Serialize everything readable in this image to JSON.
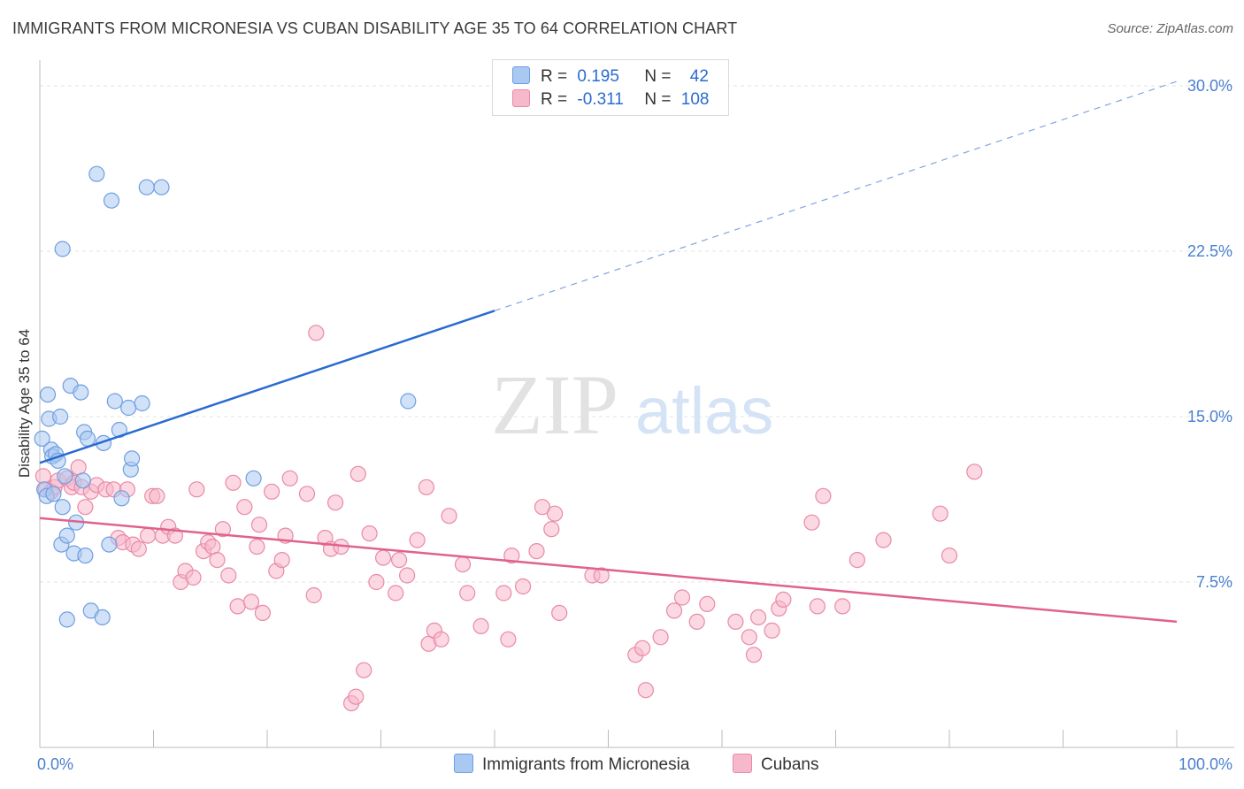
{
  "title": "IMMIGRANTS FROM MICRONESIA VS CUBAN DISABILITY AGE 35 TO 64 CORRELATION CHART",
  "source": "Source: ZipAtlas.com",
  "watermark": {
    "zip": "ZIP",
    "atlas": "atlas"
  },
  "legend": {
    "rows": [
      {
        "r_label": "R =",
        "r_value": "0.195",
        "n_label": "N =",
        "n_value": "42",
        "color": "#a9c8f2",
        "stroke": "#6f9fe0"
      },
      {
        "r_label": "R =",
        "r_value": "-0.311",
        "n_label": "N =",
        "n_value": "108",
        "color": "#f7b8cb",
        "stroke": "#e88aa8"
      }
    ]
  },
  "bottom_legend": [
    {
      "label": "Immigrants from Micronesia",
      "color": "#a9c8f2",
      "stroke": "#6f9fe0"
    },
    {
      "label": "Cubans",
      "color": "#f7b8cb",
      "stroke": "#e88aa8"
    }
  ],
  "chart_data": {
    "type": "scatter",
    "ylabel": "Disability Age 35 to 64",
    "xlim": [
      0,
      100
    ],
    "ylim": [
      0,
      30
    ],
    "x_ticks": [
      {
        "value": 0,
        "label": "0.0%"
      },
      {
        "value": 100,
        "label": "100.0%"
      }
    ],
    "y_ticks": [
      {
        "value": 7.5,
        "label": "7.5%"
      },
      {
        "value": 15,
        "label": "15.0%"
      },
      {
        "value": 22.5,
        "label": "22.5%"
      },
      {
        "value": 30,
        "label": "30.0%"
      }
    ],
    "grid": true,
    "series": [
      {
        "name": "Immigrants from Micronesia",
        "color": "#6f9fe0",
        "fill": "#a9c8f2",
        "trend": {
          "x0": 0,
          "y0": 12.9,
          "x1": 40,
          "y1": 19.8,
          "dash_to_x": 100,
          "dash_to_y": 30.2,
          "color": "#2a6bd0"
        },
        "points": [
          [
            0.2,
            14.0
          ],
          [
            0.4,
            11.7
          ],
          [
            0.6,
            11.4
          ],
          [
            0.7,
            16.0
          ],
          [
            0.8,
            14.9
          ],
          [
            1.0,
            13.5
          ],
          [
            1.1,
            13.2
          ],
          [
            1.2,
            11.5
          ],
          [
            1.4,
            13.3
          ],
          [
            1.6,
            13.0
          ],
          [
            1.8,
            15.0
          ],
          [
            1.9,
            9.2
          ],
          [
            2.0,
            10.9
          ],
          [
            2.0,
            22.6
          ],
          [
            2.2,
            12.3
          ],
          [
            2.4,
            9.6
          ],
          [
            2.4,
            5.8
          ],
          [
            2.7,
            16.4
          ],
          [
            3.0,
            8.8
          ],
          [
            3.2,
            10.2
          ],
          [
            3.6,
            16.1
          ],
          [
            3.8,
            12.1
          ],
          [
            3.9,
            14.3
          ],
          [
            4.0,
            8.7
          ],
          [
            4.2,
            14.0
          ],
          [
            4.5,
            6.2
          ],
          [
            5.0,
            26.0
          ],
          [
            5.5,
            5.9
          ],
          [
            5.6,
            13.8
          ],
          [
            6.1,
            9.2
          ],
          [
            6.3,
            24.8
          ],
          [
            6.6,
            15.7
          ],
          [
            7.0,
            14.4
          ],
          [
            7.2,
            11.3
          ],
          [
            7.8,
            15.4
          ],
          [
            8.0,
            12.6
          ],
          [
            8.1,
            13.1
          ],
          [
            9.0,
            15.6
          ],
          [
            9.4,
            25.4
          ],
          [
            10.7,
            25.4
          ],
          [
            18.8,
            12.2
          ],
          [
            32.4,
            15.7
          ]
        ]
      },
      {
        "name": "Cubans",
        "color": "#e88aa8",
        "fill": "#f7b8cb",
        "trend": {
          "x0": 0,
          "y0": 10.4,
          "x1": 100,
          "y1": 5.7,
          "color": "#e0628c"
        },
        "points": [
          [
            0.3,
            12.3
          ],
          [
            0.5,
            11.7
          ],
          [
            1.0,
            11.6
          ],
          [
            1.3,
            11.8
          ],
          [
            1.6,
            12.1
          ],
          [
            2.4,
            12.2
          ],
          [
            2.8,
            11.8
          ],
          [
            3.0,
            12.0
          ],
          [
            3.4,
            12.7
          ],
          [
            3.7,
            11.8
          ],
          [
            4.0,
            10.9
          ],
          [
            4.5,
            11.6
          ],
          [
            5.0,
            11.9
          ],
          [
            5.8,
            11.7
          ],
          [
            6.5,
            11.7
          ],
          [
            6.9,
            9.5
          ],
          [
            7.3,
            9.3
          ],
          [
            7.7,
            11.7
          ],
          [
            8.2,
            9.2
          ],
          [
            8.7,
            9.0
          ],
          [
            9.5,
            9.6
          ],
          [
            9.9,
            11.4
          ],
          [
            10.3,
            11.4
          ],
          [
            10.8,
            9.6
          ],
          [
            11.3,
            10.0
          ],
          [
            11.9,
            9.6
          ],
          [
            12.4,
            7.5
          ],
          [
            12.8,
            8.0
          ],
          [
            13.5,
            7.7
          ],
          [
            13.8,
            11.7
          ],
          [
            14.4,
            8.9
          ],
          [
            14.8,
            9.3
          ],
          [
            15.2,
            9.1
          ],
          [
            15.6,
            8.5
          ],
          [
            16.1,
            9.9
          ],
          [
            16.6,
            7.8
          ],
          [
            17.0,
            12.0
          ],
          [
            17.4,
            6.4
          ],
          [
            18.0,
            10.9
          ],
          [
            18.6,
            6.6
          ],
          [
            19.1,
            9.1
          ],
          [
            19.3,
            10.1
          ],
          [
            19.6,
            6.1
          ],
          [
            20.4,
            11.6
          ],
          [
            20.8,
            8.0
          ],
          [
            21.3,
            8.5
          ],
          [
            21.6,
            9.6
          ],
          [
            22.0,
            12.2
          ],
          [
            23.5,
            11.5
          ],
          [
            24.1,
            6.9
          ],
          [
            24.3,
            18.8
          ],
          [
            25.1,
            9.5
          ],
          [
            25.6,
            9.0
          ],
          [
            26.0,
            11.1
          ],
          [
            26.5,
            9.1
          ],
          [
            27.4,
            2.0
          ],
          [
            27.8,
            2.3
          ],
          [
            28.0,
            12.4
          ],
          [
            28.5,
            3.5
          ],
          [
            29.0,
            9.7
          ],
          [
            29.6,
            7.5
          ],
          [
            30.2,
            8.6
          ],
          [
            31.3,
            7.0
          ],
          [
            31.6,
            8.5
          ],
          [
            32.3,
            7.8
          ],
          [
            33.2,
            9.4
          ],
          [
            34.0,
            11.8
          ],
          [
            34.2,
            4.7
          ],
          [
            34.7,
            5.3
          ],
          [
            35.3,
            4.9
          ],
          [
            36.0,
            10.5
          ],
          [
            37.2,
            8.3
          ],
          [
            37.6,
            7.0
          ],
          [
            38.8,
            5.5
          ],
          [
            40.8,
            7.0
          ],
          [
            41.2,
            4.9
          ],
          [
            41.5,
            8.7
          ],
          [
            42.5,
            7.3
          ],
          [
            43.7,
            8.9
          ],
          [
            44.2,
            10.9
          ],
          [
            45.0,
            9.9
          ],
          [
            45.3,
            10.6
          ],
          [
            45.7,
            6.1
          ],
          [
            48.6,
            7.8
          ],
          [
            49.4,
            7.8
          ],
          [
            52.4,
            4.2
          ],
          [
            53.0,
            4.5
          ],
          [
            53.3,
            2.6
          ],
          [
            54.6,
            5.0
          ],
          [
            55.8,
            6.2
          ],
          [
            56.5,
            6.8
          ],
          [
            57.8,
            5.7
          ],
          [
            58.7,
            6.5
          ],
          [
            61.2,
            5.7
          ],
          [
            62.4,
            5.0
          ],
          [
            62.8,
            4.2
          ],
          [
            63.2,
            5.9
          ],
          [
            64.4,
            5.3
          ],
          [
            65.0,
            6.3
          ],
          [
            65.4,
            6.7
          ],
          [
            67.9,
            10.2
          ],
          [
            68.4,
            6.4
          ],
          [
            68.9,
            11.4
          ],
          [
            70.6,
            6.4
          ],
          [
            71.9,
            8.5
          ],
          [
            74.2,
            9.4
          ],
          [
            79.2,
            10.6
          ],
          [
            80.0,
            8.7
          ],
          [
            82.2,
            12.5
          ]
        ]
      }
    ]
  }
}
